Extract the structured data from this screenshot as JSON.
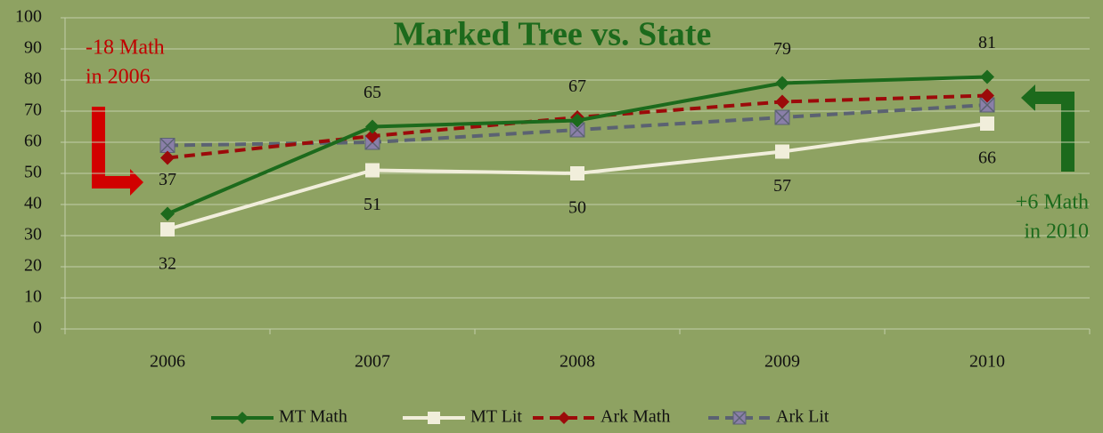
{
  "chart_data": {
    "type": "line",
    "title": "Marked Tree vs. State",
    "categories": [
      "2006",
      "2007",
      "2008",
      "2009",
      "2010"
    ],
    "series": [
      {
        "name": "MT Math",
        "color": "#1c6a1c",
        "dashed": false,
        "marker": "diamond",
        "values": [
          37,
          65,
          67,
          79,
          81
        ],
        "labels": "above"
      },
      {
        "name": "MT Lit",
        "color": "#f1eedb",
        "dashed": false,
        "marker": "square",
        "values": [
          32,
          51,
          50,
          57,
          66
        ],
        "labels": "below"
      },
      {
        "name": "Ark Math",
        "color": "#9c0a0a",
        "dashed": true,
        "marker": "diamond",
        "values": [
          55,
          62,
          68,
          73,
          75
        ]
      },
      {
        "name": "Ark Lit",
        "color": "#5b6272",
        "dashed": true,
        "marker": "xsquare",
        "values": [
          59,
          60,
          64,
          68,
          72
        ]
      }
    ],
    "ylim": [
      0,
      100
    ],
    "yticks": [
      0,
      10,
      20,
      30,
      40,
      50,
      60,
      70,
      80,
      90,
      100
    ],
    "grid": true,
    "legend": "bottom",
    "annotations": [
      {
        "lines": [
          "-18 Math",
          "in 2006"
        ],
        "color": "#c00000"
      },
      {
        "lines": [
          "+6 Math",
          "in 2010"
        ],
        "color": "#1c6a1c"
      }
    ]
  }
}
